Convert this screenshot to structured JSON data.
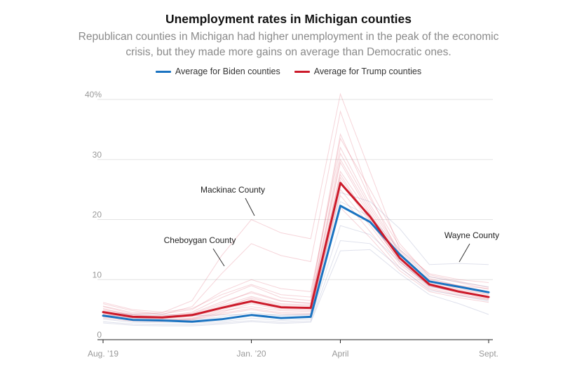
{
  "chart_data": {
    "type": "line",
    "title": "Unemployment rates in Michigan counties",
    "subtitle": "Republican counties in Michigan had higher unemployment in the peak of the economic crisis, but they made more gains on average than Democratic ones.",
    "legend": [
      {
        "name": "Average for Biden counties",
        "color": "#1a73c1"
      },
      {
        "name": "Average for Trump counties",
        "color": "#cc1a2a"
      }
    ],
    "x": [
      "Aug. 2019",
      "Sep. 2019",
      "Oct. 2019",
      "Nov. 2019",
      "Dec. 2019",
      "Jan. 2020",
      "Feb. 2020",
      "Mar. 2020",
      "Apr. 2020",
      "May 2020",
      "Jun. 2020",
      "Jul. 2020",
      "Aug. 2020",
      "Sep. 2020"
    ],
    "x_tick_labels": [
      {
        "index": 0,
        "label": "Aug. ’19"
      },
      {
        "index": 5,
        "label": "Jan. ’20"
      },
      {
        "index": 8,
        "label": "April"
      },
      {
        "index": 13,
        "label": "Sept."
      }
    ],
    "y_ticks": [
      {
        "value": 0,
        "label": "0"
      },
      {
        "value": 10,
        "label": "10"
      },
      {
        "value": 20,
        "label": "20"
      },
      {
        "value": 30,
        "label": "30"
      },
      {
        "value": 40,
        "label": "40%"
      }
    ],
    "ylim": [
      0,
      40
    ],
    "series": [
      {
        "name": "Average for Biden counties",
        "color": "#1a73c1",
        "values": [
          4.0,
          3.3,
          3.2,
          3.0,
          3.4,
          4.1,
          3.6,
          3.8,
          22.3,
          19.6,
          14.2,
          9.7,
          8.8,
          7.9
        ]
      },
      {
        "name": "Average for Trump counties",
        "color": "#cc1a2a",
        "values": [
          4.6,
          3.8,
          3.7,
          4.1,
          5.3,
          6.4,
          5.4,
          5.3,
          26.1,
          20.5,
          13.6,
          9.2,
          8.0,
          7.1
        ]
      }
    ],
    "county_lines": [
      {
        "name": "Mackinac County",
        "party": "trump",
        "values": [
          5.5,
          4.3,
          4.5,
          6.5,
          14.0,
          20.0,
          17.8,
          16.8,
          40.9,
          28.0,
          15.0,
          11.0,
          10.0,
          9.5
        ]
      },
      {
        "name": "Cheboygan County",
        "party": "trump",
        "values": [
          6.0,
          4.8,
          4.2,
          5.5,
          11.0,
          16.0,
          14.0,
          13.0,
          38.0,
          24.0,
          14.0,
          10.0,
          9.0,
          8.5
        ]
      },
      {
        "name": "Wayne County",
        "party": "biden",
        "values": [
          4.5,
          4.2,
          4.2,
          4.0,
          4.1,
          4.2,
          4.1,
          4.3,
          24.5,
          23.0,
          18.5,
          12.5,
          12.7,
          12.5
        ]
      },
      {
        "party": "trump",
        "values": [
          5.2,
          4.0,
          3.9,
          4.6,
          7.0,
          9.0,
          7.0,
          6.5,
          33.5,
          25.0,
          16.0,
          10.5,
          9.5,
          8.4
        ]
      },
      {
        "party": "trump",
        "values": [
          4.8,
          4.1,
          3.8,
          4.3,
          6.0,
          8.0,
          6.5,
          6.0,
          31.0,
          22.0,
          14.5,
          9.8,
          8.8,
          7.9
        ]
      },
      {
        "party": "trump",
        "values": [
          4.2,
          3.6,
          3.5,
          3.9,
          5.2,
          7.0,
          5.8,
          5.6,
          29.5,
          21.0,
          13.8,
          9.4,
          8.3,
          7.5
        ]
      },
      {
        "party": "trump",
        "values": [
          3.8,
          3.3,
          3.2,
          3.5,
          4.6,
          6.0,
          5.0,
          4.9,
          27.0,
          20.0,
          13.0,
          8.9,
          7.9,
          7.0
        ]
      },
      {
        "party": "trump",
        "values": [
          4.0,
          3.4,
          3.3,
          3.6,
          4.8,
          5.5,
          4.8,
          4.7,
          24.0,
          18.0,
          12.0,
          8.4,
          7.3,
          6.6
        ]
      },
      {
        "party": "trump",
        "values": [
          5.6,
          4.5,
          4.3,
          5.0,
          8.0,
          10.0,
          8.5,
          8.0,
          32.0,
          22.5,
          14.8,
          10.2,
          9.0,
          8.0
        ]
      },
      {
        "party": "trump",
        "values": [
          4.5,
          3.8,
          3.6,
          4.0,
          5.5,
          6.8,
          5.6,
          5.3,
          26.5,
          19.5,
          13.2,
          9.0,
          7.7,
          6.8
        ]
      },
      {
        "party": "trump",
        "values": [
          3.6,
          3.1,
          3.0,
          3.3,
          4.2,
          5.0,
          4.3,
          4.2,
          22.0,
          17.0,
          11.5,
          8.0,
          7.0,
          6.2
        ]
      },
      {
        "party": "trump",
        "values": [
          5.0,
          4.2,
          4.0,
          4.4,
          6.3,
          7.8,
          6.4,
          6.1,
          30.0,
          21.5,
          14.0,
          9.6,
          8.5,
          7.6
        ]
      },
      {
        "party": "trump",
        "values": [
          6.2,
          5.0,
          4.6,
          5.2,
          7.5,
          9.2,
          7.5,
          7.1,
          34.2,
          23.5,
          15.5,
          10.8,
          9.7,
          8.7
        ]
      },
      {
        "party": "trump",
        "values": [
          3.9,
          3.2,
          3.1,
          3.4,
          4.4,
          5.2,
          4.5,
          4.4,
          25.0,
          19.0,
          12.6,
          8.6,
          7.5,
          6.7
        ]
      },
      {
        "party": "trump",
        "values": [
          4.3,
          3.7,
          3.6,
          3.9,
          5.0,
          6.2,
          5.2,
          5.0,
          28.0,
          20.8,
          13.5,
          9.3,
          8.2,
          7.2
        ]
      },
      {
        "party": "trump",
        "values": [
          4.7,
          3.9,
          3.7,
          4.1,
          5.7,
          7.2,
          6.0,
          5.8,
          27.5,
          19.8,
          13.0,
          9.0,
          7.9,
          7.0
        ]
      },
      {
        "party": "biden",
        "values": [
          3.4,
          2.9,
          2.8,
          2.8,
          3.0,
          3.6,
          3.2,
          3.4,
          19.0,
          17.5,
          13.0,
          8.8,
          8.0,
          7.0
        ]
      },
      {
        "party": "biden",
        "values": [
          3.0,
          2.6,
          2.5,
          2.5,
          2.8,
          3.2,
          2.9,
          3.1,
          16.5,
          16.0,
          12.0,
          8.2,
          7.4,
          6.4
        ]
      },
      {
        "party": "biden",
        "values": [
          4.2,
          3.6,
          3.4,
          3.3,
          3.8,
          4.5,
          4.0,
          4.1,
          23.0,
          20.5,
          15.0,
          10.5,
          9.6,
          8.8
        ]
      },
      {
        "party": "biden",
        "values": [
          2.8,
          2.4,
          2.3,
          2.3,
          2.6,
          3.0,
          2.7,
          2.9,
          14.8,
          15.0,
          11.0,
          7.5,
          6.0,
          4.2
        ]
      }
    ],
    "annotations": [
      {
        "text": "Mackinac County"
      },
      {
        "text": "Cheboygan County"
      },
      {
        "text": "Wayne County"
      }
    ]
  }
}
